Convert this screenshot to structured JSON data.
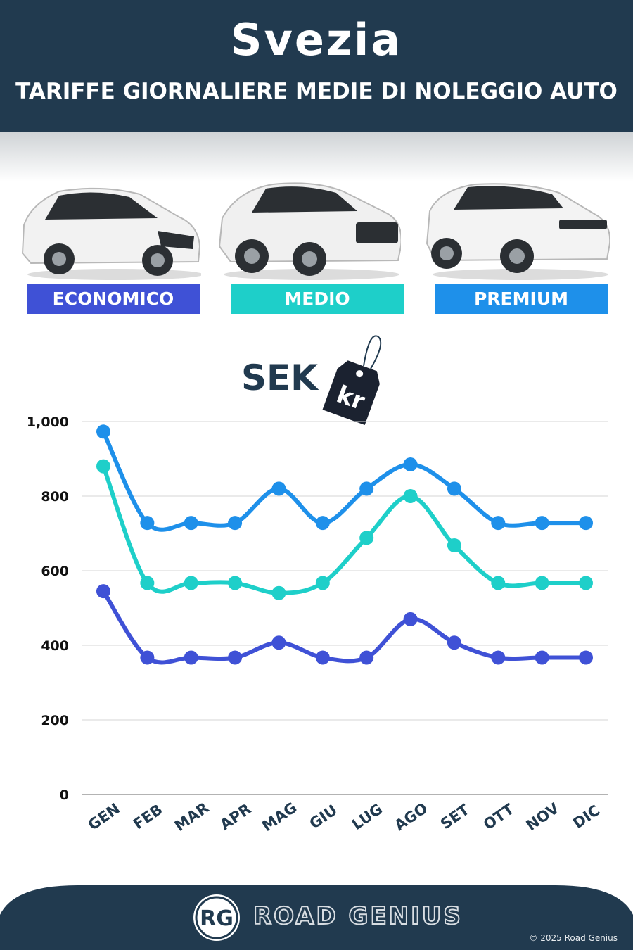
{
  "header": {
    "title": "Svezia",
    "subtitle": "TARIFFE GIORNALIERE MEDIE DI NOLEGGIO AUTO"
  },
  "legend": [
    {
      "label": "ECONOMICO",
      "color": "#3f51d6"
    },
    {
      "label": "MEDIO",
      "color": "#1ecfc9"
    },
    {
      "label": "PREMIUM",
      "color": "#1e90ea"
    }
  ],
  "currency": {
    "code": "SEK",
    "symbol": "kr"
  },
  "chart_data": {
    "type": "line",
    "categories": [
      "GEN",
      "FEB",
      "MAR",
      "APR",
      "MAG",
      "GIU",
      "LUG",
      "AGO",
      "SET",
      "OTT",
      "NOV",
      "DIC"
    ],
    "ylim": [
      0,
      1000
    ],
    "yticks": [
      "0",
      "200",
      "400",
      "600",
      "800",
      "1,000"
    ],
    "grid": true,
    "series": [
      {
        "name": "PREMIUM",
        "color": "#1e90ea",
        "values": [
          973,
          728,
          728,
          728,
          820,
          728,
          820,
          885,
          820,
          728,
          728,
          728
        ]
      },
      {
        "name": "MEDIO",
        "color": "#1ecfc9",
        "values": [
          880,
          567,
          567,
          567,
          540,
          567,
          688,
          800,
          668,
          567,
          567,
          567
        ]
      },
      {
        "name": "ECONOMICO",
        "color": "#3f51d6",
        "values": [
          545,
          367,
          367,
          367,
          407,
          367,
          367,
          470,
          407,
          367,
          367,
          367
        ]
      }
    ]
  },
  "footer": {
    "brand": "ROAD GENIUS",
    "logo_text": "RG",
    "copyright": "© 2025 Road Genius"
  }
}
